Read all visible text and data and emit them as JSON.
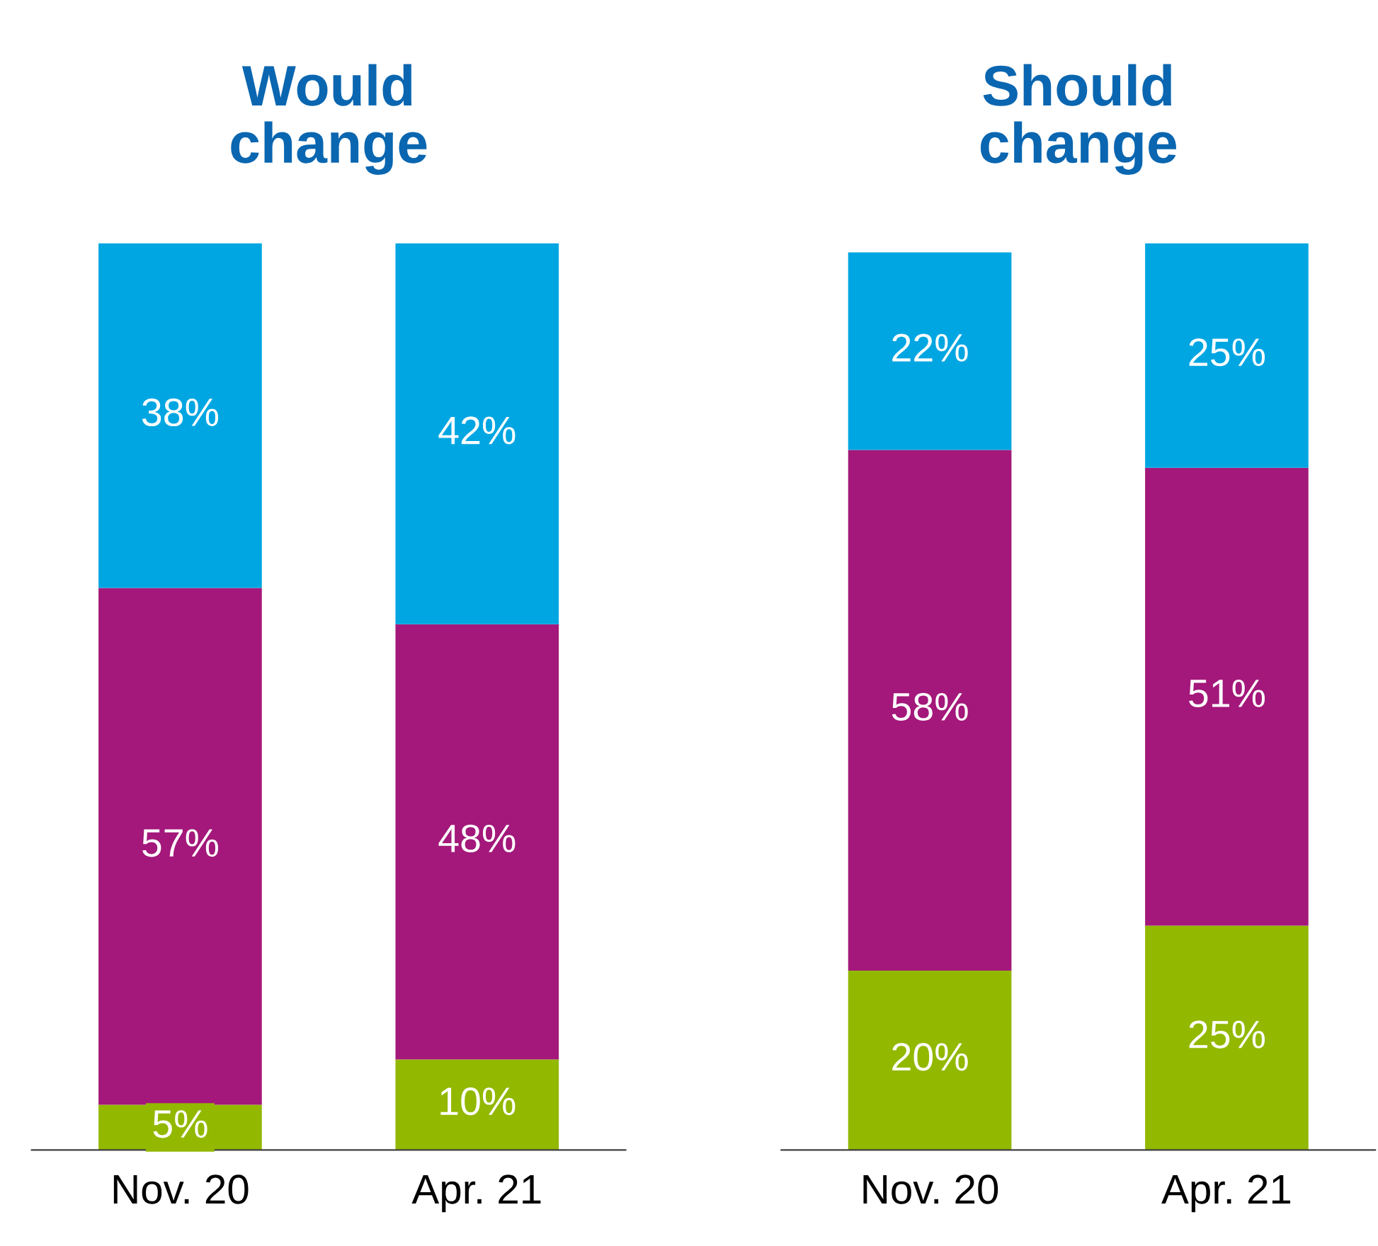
{
  "chart_data": [
    {
      "type": "bar",
      "title": "Would\nchange",
      "stacked": true,
      "categories": [
        "Nov. 20",
        "Apr. 21"
      ],
      "series": [
        {
          "color": "#92b800",
          "values": [
            5,
            10
          ],
          "value_labels": [
            "5%",
            "10%"
          ]
        },
        {
          "color": "#a3187a",
          "values": [
            57,
            48
          ],
          "value_labels": [
            "57%",
            "48%"
          ]
        },
        {
          "color": "#00a6e2",
          "values": [
            38,
            42
          ],
          "value_labels": [
            "38%",
            "42%"
          ]
        }
      ],
      "grid": false,
      "legend": false,
      "tick_labels": "x"
    },
    {
      "type": "bar",
      "title": "Should\nchange",
      "stacked": true,
      "categories": [
        "Nov. 20",
        "Apr. 21"
      ],
      "series": [
        {
          "color": "#92b800",
          "values": [
            20,
            25
          ],
          "value_labels": [
            "20%",
            "25%"
          ]
        },
        {
          "color": "#a3187a",
          "values": [
            58,
            51
          ],
          "value_labels": [
            "58%",
            "51%"
          ]
        },
        {
          "color": "#00a6e2",
          "values": [
            22,
            25
          ],
          "value_labels": [
            "22%",
            "25%"
          ]
        }
      ],
      "grid": false,
      "legend": false,
      "tick_labels": "x"
    }
  ]
}
